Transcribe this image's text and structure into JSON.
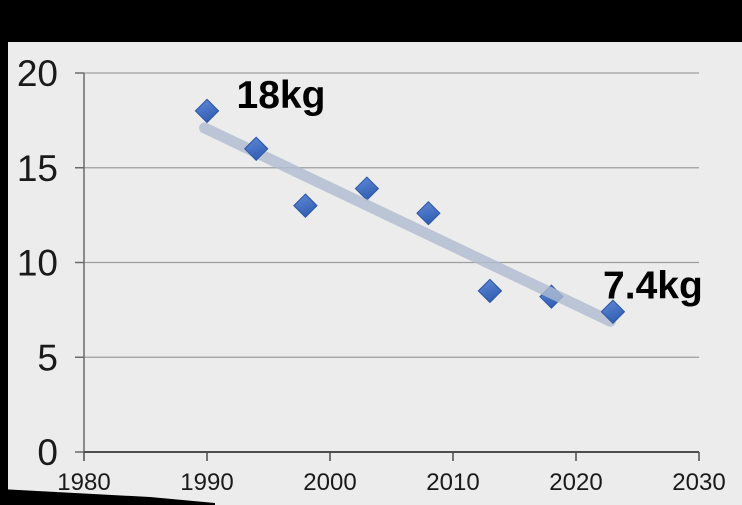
{
  "frame": {
    "background": "#000000",
    "plot_background": "#ececec"
  },
  "chart_data": {
    "type": "scatter",
    "title": "",
    "xlabel": "",
    "ylabel": "",
    "x": [
      1990,
      1994,
      1998,
      2003,
      2008,
      2013,
      2018,
      2023
    ],
    "y": [
      18,
      16,
      13,
      13.9,
      12.6,
      8.5,
      8.2,
      7.4
    ],
    "xlim": [
      1980,
      2030
    ],
    "ylim": [
      0,
      20
    ],
    "xticks": [
      1980,
      1990,
      2000,
      2010,
      2020,
      2030
    ],
    "yticks": [
      0,
      5,
      10,
      15,
      20
    ],
    "grid": "horizontal-only",
    "legend_position": "none",
    "marker": {
      "shape": "diamond",
      "color_main": "#4472c4",
      "color_light": "#6189d7",
      "color_dark": "#3360b3",
      "edge": "#2e57a8"
    },
    "trendline": {
      "x_start": 1989.8,
      "y_start": 17.1,
      "x_end": 2022.8,
      "y_end": 6.9,
      "color": "#afbcd0",
      "opacity": 0.8
    },
    "annotations": [
      {
        "text": "18kg",
        "x": 1992.4,
        "y": 18.15
      },
      {
        "text": "7.4kg",
        "x": 2022.2,
        "y": 8.1
      }
    ],
    "colors": {
      "gridline": "#9e9e9e",
      "y_axis": "#6b6b6b",
      "x_axis": "#4d4d4d",
      "tick_label": "#1a1a1a",
      "annotation": "#000000"
    }
  }
}
